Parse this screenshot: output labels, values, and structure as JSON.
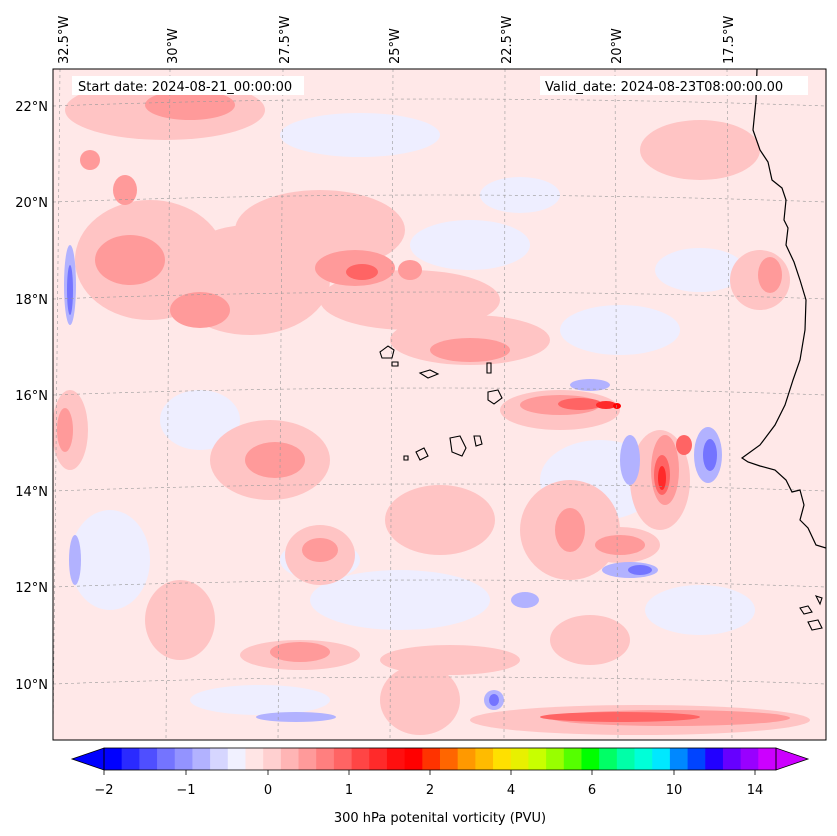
{
  "header": {
    "start_date": "Start date: 2024-08-21_00:00:00",
    "valid_date": "Valid_date: 2024-08-23T08:00:00.00"
  },
  "axes": {
    "longitudes": [
      "32.5°W",
      "30°W",
      "27.5°W",
      "25°W",
      "22.5°W",
      "20°W",
      "17.5°W"
    ],
    "latitudes": [
      "22°N",
      "20°N",
      "18°N",
      "16°N",
      "14°N",
      "12°N",
      "10°N"
    ]
  },
  "colorbar": {
    "label": "300 hPa potenital vorticity (PVU)",
    "tick_labels": [
      "−2",
      "−1",
      "0",
      "1",
      "2",
      "4",
      "6",
      "10",
      "14"
    ],
    "colors": [
      "#0000ff",
      "#2a2aff",
      "#4f4fff",
      "#7474ff",
      "#9393ff",
      "#b2b2ff",
      "#d6d6ff",
      "#f1f1ff",
      "#ffe5e5",
      "#ffd0d0",
      "#ffb5b5",
      "#ff9a9a",
      "#ff7f7f",
      "#ff6464",
      "#ff4545",
      "#ff2a2a",
      "#ff0f0f",
      "#ff0000",
      "#ff3300",
      "#ff6600",
      "#ff9900",
      "#ffbb00",
      "#ffe000",
      "#e8f000",
      "#c8ff00",
      "#98ff00",
      "#55ff00",
      "#00ff00",
      "#00ff66",
      "#00ffa8",
      "#00ffd8",
      "#00e8ff",
      "#0088ff",
      "#0044ff",
      "#2200ff",
      "#6600ff",
      "#9900ff",
      "#cc00ff"
    ]
  },
  "colors": {
    "background": "#ffe8e8",
    "light_red": "#ffc4c4",
    "mid_red": "#ff9a9a",
    "strong_red": "#ff6464",
    "light_blue": "#eeeeff",
    "mid_blue": "#b2b2ff",
    "strong_blue": "#7474ff"
  }
}
